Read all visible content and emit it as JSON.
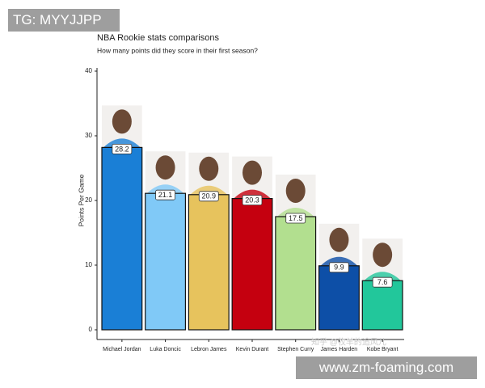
{
  "chart_data": {
    "type": "bar",
    "title": "NBA Rookie stats comparisons",
    "subtitle": "How many points did they score in their first season?",
    "y_label": "Points Per Game",
    "categories": [
      "Michael Jordan",
      "Luka Doncic",
      "Lebron James",
      "Kevin Durant",
      "Stephen Curry",
      "James Harden",
      "Kobe Bryant"
    ],
    "values": [
      28.2,
      21.1,
      20.9,
      20.3,
      17.5,
      9.9,
      7.6
    ],
    "colors": [
      "#1a7fd6",
      "#80c9f7",
      "#e7c35d",
      "#c5000f",
      "#b2df8f",
      "#0d4fa7",
      "#22c79b"
    ],
    "ylim": [
      0,
      40
    ],
    "yticks": [
      0,
      10,
      20,
      30,
      40
    ]
  },
  "overlays": {
    "tag": "TG: MYYJJPP",
    "watermark": "知乎 @牧羊的追风儿",
    "site": "www.zm-foaming.com"
  }
}
